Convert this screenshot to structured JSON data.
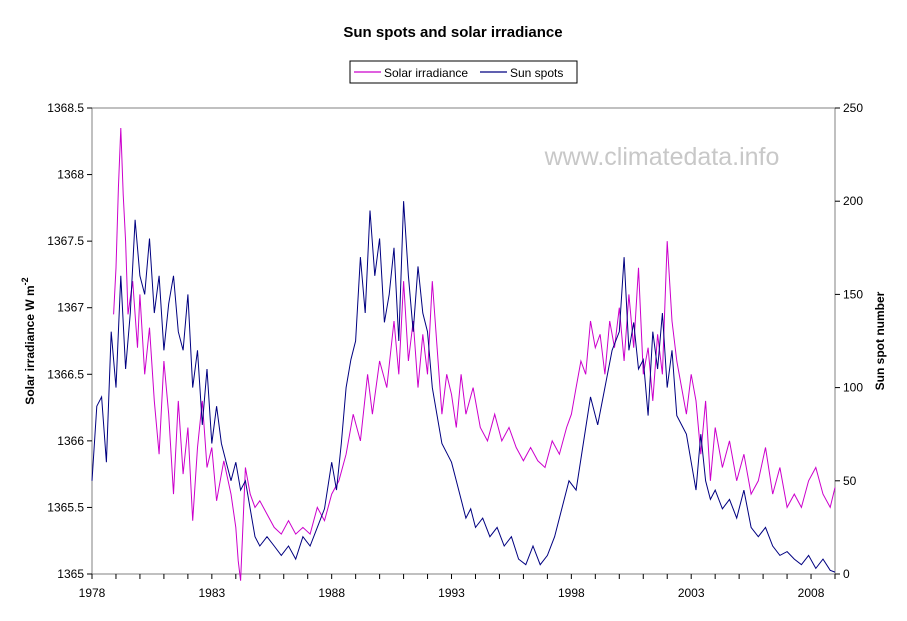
{
  "chart_data": {
    "type": "line",
    "title": "Sun spots and solar irradiance",
    "watermark": "www.climatedata.info",
    "y_left_label": "Solar irradiance W m",
    "y_left_label_sup": "-2",
    "y_right_label": "Sun spot number",
    "xlim": [
      1978,
      2009
    ],
    "x_ticks": [
      "1978",
      "1983",
      "1988",
      "1993",
      "1998",
      "2003",
      "2008"
    ],
    "y_left_lim": [
      1365,
      1368.5
    ],
    "y_left_ticks": [
      "1368.5",
      "1368",
      "1367.5",
      "1367",
      "1366.5",
      "1366",
      "1365.5",
      "1365"
    ],
    "y_right_lim": [
      0,
      250
    ],
    "y_right_ticks": [
      "250",
      "200",
      "150",
      "100",
      "50",
      "0"
    ],
    "grid": false,
    "legend_position": "top-center",
    "series": [
      {
        "name": "Solar irradiance",
        "color": "#cc00cc",
        "axis": "left",
        "points": [
          [
            1978.9,
            1366.95
          ],
          [
            1979.0,
            1367.3
          ],
          [
            1979.1,
            1367.9
          ],
          [
            1979.2,
            1368.35
          ],
          [
            1979.3,
            1367.85
          ],
          [
            1979.4,
            1367.5
          ],
          [
            1979.5,
            1366.95
          ],
          [
            1979.7,
            1367.2
          ],
          [
            1979.9,
            1366.7
          ],
          [
            1980.0,
            1367.1
          ],
          [
            1980.2,
            1366.5
          ],
          [
            1980.4,
            1366.85
          ],
          [
            1980.6,
            1366.3
          ],
          [
            1980.8,
            1365.9
          ],
          [
            1981.0,
            1366.6
          ],
          [
            1981.2,
            1366.2
          ],
          [
            1981.4,
            1365.6
          ],
          [
            1981.6,
            1366.3
          ],
          [
            1981.8,
            1365.75
          ],
          [
            1982.0,
            1366.1
          ],
          [
            1982.2,
            1365.4
          ],
          [
            1982.4,
            1365.95
          ],
          [
            1982.6,
            1366.3
          ],
          [
            1982.8,
            1365.8
          ],
          [
            1983.0,
            1365.95
          ],
          [
            1983.2,
            1365.55
          ],
          [
            1983.5,
            1365.85
          ],
          [
            1983.8,
            1365.6
          ],
          [
            1984.0,
            1365.35
          ],
          [
            1984.1,
            1365.1
          ],
          [
            1984.2,
            1364.95
          ],
          [
            1984.4,
            1365.8
          ],
          [
            1984.6,
            1365.6
          ],
          [
            1984.8,
            1365.5
          ],
          [
            1985.0,
            1365.55
          ],
          [
            1985.3,
            1365.45
          ],
          [
            1985.6,
            1365.35
          ],
          [
            1985.9,
            1365.3
          ],
          [
            1986.2,
            1365.4
          ],
          [
            1986.5,
            1365.3
          ],
          [
            1986.8,
            1365.35
          ],
          [
            1987.1,
            1365.3
          ],
          [
            1987.4,
            1365.5
          ],
          [
            1987.7,
            1365.4
          ],
          [
            1988.0,
            1365.6
          ],
          [
            1988.3,
            1365.7
          ],
          [
            1988.6,
            1365.9
          ],
          [
            1988.9,
            1366.2
          ],
          [
            1989.2,
            1366.0
          ],
          [
            1989.5,
            1366.5
          ],
          [
            1989.7,
            1366.2
          ],
          [
            1990.0,
            1366.6
          ],
          [
            1990.3,
            1366.4
          ],
          [
            1990.6,
            1366.9
          ],
          [
            1990.8,
            1366.5
          ],
          [
            1991.0,
            1367.2
          ],
          [
            1991.2,
            1366.6
          ],
          [
            1991.4,
            1366.9
          ],
          [
            1991.6,
            1366.4
          ],
          [
            1991.8,
            1366.8
          ],
          [
            1992.0,
            1366.5
          ],
          [
            1992.2,
            1367.2
          ],
          [
            1992.4,
            1366.7
          ],
          [
            1992.6,
            1366.2
          ],
          [
            1992.8,
            1366.5
          ],
          [
            1993.0,
            1366.35
          ],
          [
            1993.2,
            1366.1
          ],
          [
            1993.4,
            1366.5
          ],
          [
            1993.6,
            1366.2
          ],
          [
            1993.9,
            1366.4
          ],
          [
            1994.2,
            1366.1
          ],
          [
            1994.5,
            1366.0
          ],
          [
            1994.8,
            1366.2
          ],
          [
            1995.1,
            1366.0
          ],
          [
            1995.4,
            1366.1
          ],
          [
            1995.7,
            1365.95
          ],
          [
            1996.0,
            1365.85
          ],
          [
            1996.3,
            1365.95
          ],
          [
            1996.6,
            1365.85
          ],
          [
            1996.9,
            1365.8
          ],
          [
            1997.2,
            1366.0
          ],
          [
            1997.5,
            1365.9
          ],
          [
            1997.8,
            1366.1
          ],
          [
            1998.0,
            1366.2
          ],
          [
            1998.2,
            1366.4
          ],
          [
            1998.4,
            1366.6
          ],
          [
            1998.6,
            1366.5
          ],
          [
            1998.8,
            1366.9
          ],
          [
            1999.0,
            1366.7
          ],
          [
            1999.2,
            1366.8
          ],
          [
            1999.4,
            1366.5
          ],
          [
            1999.6,
            1366.9
          ],
          [
            1999.8,
            1366.7
          ],
          [
            2000.0,
            1367.0
          ],
          [
            2000.2,
            1366.6
          ],
          [
            2000.4,
            1367.1
          ],
          [
            2000.6,
            1366.7
          ],
          [
            2000.8,
            1367.3
          ],
          [
            2001.0,
            1366.5
          ],
          [
            2001.2,
            1366.7
          ],
          [
            2001.4,
            1366.3
          ],
          [
            2001.6,
            1366.8
          ],
          [
            2001.8,
            1366.5
          ],
          [
            2002.0,
            1367.5
          ],
          [
            2002.2,
            1366.9
          ],
          [
            2002.4,
            1366.6
          ],
          [
            2002.6,
            1366.4
          ],
          [
            2002.8,
            1366.2
          ],
          [
            2003.0,
            1366.5
          ],
          [
            2003.2,
            1366.3
          ],
          [
            2003.4,
            1365.9
          ],
          [
            2003.6,
            1366.3
          ],
          [
            2003.8,
            1365.7
          ],
          [
            2004.0,
            1366.1
          ],
          [
            2004.3,
            1365.8
          ],
          [
            2004.6,
            1366.0
          ],
          [
            2004.9,
            1365.7
          ],
          [
            2005.2,
            1365.9
          ],
          [
            2005.5,
            1365.6
          ],
          [
            2005.8,
            1365.7
          ],
          [
            2006.1,
            1365.95
          ],
          [
            2006.4,
            1365.6
          ],
          [
            2006.7,
            1365.8
          ],
          [
            2007.0,
            1365.5
          ],
          [
            2007.3,
            1365.6
          ],
          [
            2007.6,
            1365.5
          ],
          [
            2007.9,
            1365.7
          ],
          [
            2008.2,
            1365.8
          ],
          [
            2008.5,
            1365.6
          ],
          [
            2008.8,
            1365.5
          ],
          [
            2009.0,
            1365.65
          ]
        ]
      },
      {
        "name": "Sun spots",
        "color": "#000080",
        "axis": "right",
        "points": [
          [
            1978.0,
            50
          ],
          [
            1978.2,
            90
          ],
          [
            1978.4,
            95
          ],
          [
            1978.6,
            60
          ],
          [
            1978.8,
            130
          ],
          [
            1979.0,
            100
          ],
          [
            1979.2,
            160
          ],
          [
            1979.4,
            110
          ],
          [
            1979.6,
            140
          ],
          [
            1979.8,
            190
          ],
          [
            1980.0,
            160
          ],
          [
            1980.2,
            150
          ],
          [
            1980.4,
            180
          ],
          [
            1980.6,
            140
          ],
          [
            1980.8,
            160
          ],
          [
            1981.0,
            120
          ],
          [
            1981.2,
            145
          ],
          [
            1981.4,
            160
          ],
          [
            1981.6,
            130
          ],
          [
            1981.8,
            120
          ],
          [
            1982.0,
            150
          ],
          [
            1982.2,
            100
          ],
          [
            1982.4,
            120
          ],
          [
            1982.6,
            80
          ],
          [
            1982.8,
            110
          ],
          [
            1983.0,
            70
          ],
          [
            1983.2,
            90
          ],
          [
            1983.4,
            70
          ],
          [
            1983.6,
            60
          ],
          [
            1983.8,
            50
          ],
          [
            1984.0,
            60
          ],
          [
            1984.2,
            45
          ],
          [
            1984.4,
            50
          ],
          [
            1984.6,
            35
          ],
          [
            1984.8,
            20
          ],
          [
            1985.0,
            15
          ],
          [
            1985.3,
            20
          ],
          [
            1985.6,
            15
          ],
          [
            1985.9,
            10
          ],
          [
            1986.2,
            15
          ],
          [
            1986.5,
            8
          ],
          [
            1986.8,
            20
          ],
          [
            1987.1,
            15
          ],
          [
            1987.4,
            25
          ],
          [
            1987.7,
            35
          ],
          [
            1988.0,
            60
          ],
          [
            1988.2,
            45
          ],
          [
            1988.4,
            70
          ],
          [
            1988.6,
            100
          ],
          [
            1988.8,
            115
          ],
          [
            1989.0,
            125
          ],
          [
            1989.2,
            170
          ],
          [
            1989.4,
            140
          ],
          [
            1989.6,
            195
          ],
          [
            1989.8,
            160
          ],
          [
            1990.0,
            180
          ],
          [
            1990.2,
            135
          ],
          [
            1990.4,
            150
          ],
          [
            1990.6,
            175
          ],
          [
            1990.8,
            125
          ],
          [
            1991.0,
            200
          ],
          [
            1991.2,
            160
          ],
          [
            1991.4,
            130
          ],
          [
            1991.6,
            165
          ],
          [
            1991.8,
            140
          ],
          [
            1992.0,
            130
          ],
          [
            1992.2,
            100
          ],
          [
            1992.4,
            85
          ],
          [
            1992.6,
            70
          ],
          [
            1992.8,
            65
          ],
          [
            1993.0,
            60
          ],
          [
            1993.2,
            50
          ],
          [
            1993.4,
            40
          ],
          [
            1993.6,
            30
          ],
          [
            1993.8,
            35
          ],
          [
            1994.0,
            25
          ],
          [
            1994.3,
            30
          ],
          [
            1994.6,
            20
          ],
          [
            1994.9,
            25
          ],
          [
            1995.2,
            15
          ],
          [
            1995.5,
            20
          ],
          [
            1995.8,
            8
          ],
          [
            1996.1,
            5
          ],
          [
            1996.4,
            15
          ],
          [
            1996.7,
            5
          ],
          [
            1997.0,
            10
          ],
          [
            1997.3,
            20
          ],
          [
            1997.6,
            35
          ],
          [
            1997.9,
            50
          ],
          [
            1998.2,
            45
          ],
          [
            1998.5,
            70
          ],
          [
            1998.8,
            95
          ],
          [
            1999.1,
            80
          ],
          [
            1999.4,
            100
          ],
          [
            1999.7,
            120
          ],
          [
            2000.0,
            130
          ],
          [
            2000.2,
            170
          ],
          [
            2000.4,
            120
          ],
          [
            2000.6,
            135
          ],
          [
            2000.8,
            110
          ],
          [
            2001.0,
            115
          ],
          [
            2001.2,
            85
          ],
          [
            2001.4,
            130
          ],
          [
            2001.6,
            110
          ],
          [
            2001.8,
            140
          ],
          [
            2002.0,
            100
          ],
          [
            2002.2,
            120
          ],
          [
            2002.4,
            85
          ],
          [
            2002.6,
            80
          ],
          [
            2002.8,
            75
          ],
          [
            2003.0,
            60
          ],
          [
            2003.2,
            45
          ],
          [
            2003.4,
            75
          ],
          [
            2003.6,
            50
          ],
          [
            2003.8,
            40
          ],
          [
            2004.0,
            45
          ],
          [
            2004.3,
            35
          ],
          [
            2004.6,
            40
          ],
          [
            2004.9,
            30
          ],
          [
            2005.2,
            45
          ],
          [
            2005.5,
            25
          ],
          [
            2005.8,
            20
          ],
          [
            2006.1,
            25
          ],
          [
            2006.4,
            15
          ],
          [
            2006.7,
            10
          ],
          [
            2007.0,
            12
          ],
          [
            2007.3,
            8
          ],
          [
            2007.6,
            5
          ],
          [
            2007.9,
            10
          ],
          [
            2008.2,
            3
          ],
          [
            2008.5,
            8
          ],
          [
            2008.8,
            2
          ],
          [
            2009.0,
            1
          ]
        ]
      }
    ]
  }
}
